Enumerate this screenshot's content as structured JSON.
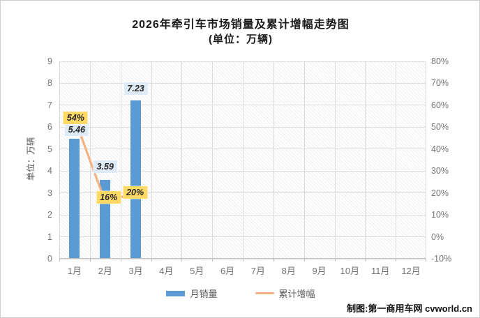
{
  "title": {
    "line1": "2026年牵引车市场销量及累计增幅走势图",
    "line2": "(单位：万辆)"
  },
  "watermark": "制图:第一商用车网 cvworld.cn",
  "chart_data": {
    "type": "bar",
    "subtype": "combo-bar-line",
    "title": "2026年牵引车市场销量及累计增幅走势图",
    "subtitle": "(单位：万辆)",
    "categories": [
      "1月",
      "2月",
      "3月",
      "4月",
      "5月",
      "6月",
      "7月",
      "8月",
      "9月",
      "10月",
      "11月",
      "12月"
    ],
    "y_axis_left": {
      "label": "单位：万辆",
      "range": [
        0,
        9
      ],
      "ticks": [
        "9",
        "8",
        "7",
        "6",
        "5",
        "4",
        "3",
        "2",
        "1",
        "0"
      ]
    },
    "y_axis_right": {
      "range": [
        -10,
        80
      ],
      "ticks": [
        "80%",
        "70%",
        "60%",
        "50%",
        "40%",
        "30%",
        "20%",
        "10%",
        "0%",
        "-10%"
      ]
    },
    "series": [
      {
        "name": "月销量",
        "type": "bar",
        "axis": "left",
        "color": "#5B9BD5",
        "label_bg": "#DEEBF7",
        "values": [
          5.46,
          3.59,
          7.23,
          null,
          null,
          null,
          null,
          null,
          null,
          null,
          null,
          null
        ],
        "data_labels": [
          "5.46",
          "3.59",
          "7.23"
        ]
      },
      {
        "name": "累计增幅",
        "type": "line",
        "axis": "right",
        "color": "#F4B183",
        "label_bg": "#FFD966",
        "values": [
          54,
          16,
          20,
          null,
          null,
          null,
          null,
          null,
          null,
          null,
          null,
          null
        ],
        "data_labels": [
          "54%",
          "16%",
          "20%"
        ]
      }
    ],
    "legend_position": "bottom",
    "grid": true
  }
}
